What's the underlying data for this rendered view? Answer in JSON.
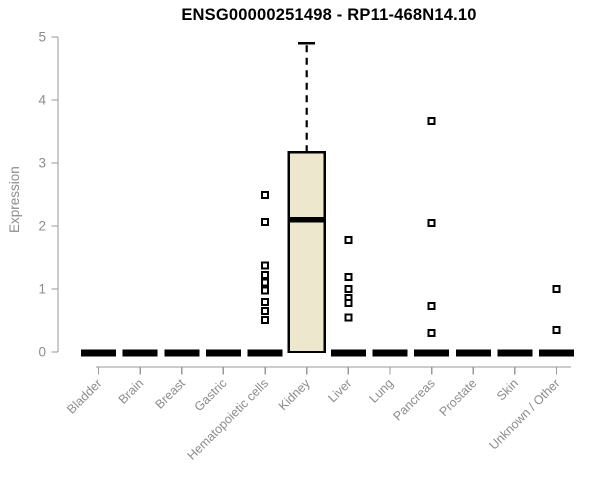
{
  "chart_data": {
    "type": "boxplot",
    "title": "ENSG00000251498 - RP11-468N14.10",
    "ylabel": "Expression",
    "xlabel": "",
    "ylim": [
      0,
      5
    ],
    "yticks": [
      0,
      1,
      2,
      3,
      4,
      5
    ],
    "grid": false,
    "legend": "none",
    "categories": [
      "Bladder",
      "Brain",
      "Breast",
      "Gastric",
      "Hematopoietic cells",
      "Kidney",
      "Liver",
      "Lung",
      "Pancreas",
      "Prostate",
      "Skin",
      "Unknown / Other"
    ],
    "boxes": [
      {
        "category": "Bladder",
        "q1": 0,
        "median": 0,
        "q3": 0,
        "whisker_low": 0,
        "whisker_high": 0,
        "outliers": []
      },
      {
        "category": "Brain",
        "q1": 0,
        "median": 0,
        "q3": 0,
        "whisker_low": 0,
        "whisker_high": 0,
        "outliers": []
      },
      {
        "category": "Breast",
        "q1": 0,
        "median": 0,
        "q3": 0,
        "whisker_low": 0,
        "whisker_high": 0,
        "outliers": []
      },
      {
        "category": "Gastric",
        "q1": 0,
        "median": 0,
        "q3": 0,
        "whisker_low": 0,
        "whisker_high": 0,
        "outliers": []
      },
      {
        "category": "Hematopoietic cells",
        "q1": 0,
        "median": 0,
        "q3": 0,
        "whisker_low": 0,
        "whisker_high": 0,
        "outliers": [
          2.49,
          2.06,
          1.37,
          1.22,
          1.1,
          0.98,
          0.79,
          0.65,
          0.51
        ]
      },
      {
        "category": "Kidney",
        "q1": 0,
        "median": 2.1,
        "q3": 3.17,
        "whisker_low": 0,
        "whisker_high": 4.9,
        "outliers": []
      },
      {
        "category": "Liver",
        "q1": 0,
        "median": 0,
        "q3": 0,
        "whisker_low": 0,
        "whisker_high": 0,
        "outliers": [
          1.78,
          1.19,
          1.0,
          0.86,
          0.78,
          0.55
        ]
      },
      {
        "category": "Lung",
        "q1": 0,
        "median": 0,
        "q3": 0,
        "whisker_low": 0,
        "whisker_high": 0,
        "outliers": []
      },
      {
        "category": "Pancreas",
        "q1": 0,
        "median": 0,
        "q3": 0,
        "whisker_low": 0,
        "whisker_high": 0,
        "outliers": [
          3.67,
          2.05,
          0.73,
          0.3
        ]
      },
      {
        "category": "Prostate",
        "q1": 0,
        "median": 0,
        "q3": 0,
        "whisker_low": 0,
        "whisker_high": 0,
        "outliers": []
      },
      {
        "category": "Skin",
        "q1": 0,
        "median": 0,
        "q3": 0,
        "whisker_low": 0,
        "whisker_high": 0,
        "outliers": []
      },
      {
        "category": "Unknown / Other",
        "q1": 0,
        "median": 0,
        "q3": 0,
        "whisker_low": 0,
        "whisker_high": 0,
        "outliers": [
          1.0,
          0.35
        ]
      }
    ],
    "colors": {
      "box_fill": "#EDE8CD",
      "box_stroke": "#000000",
      "median": "#000000",
      "flat_bar": "#000000",
      "outlier_stroke": "#000000",
      "axis_line": "#999999",
      "axis_text": "#8c8c8c",
      "title_text": "#000000",
      "background": "#ffffff"
    }
  }
}
